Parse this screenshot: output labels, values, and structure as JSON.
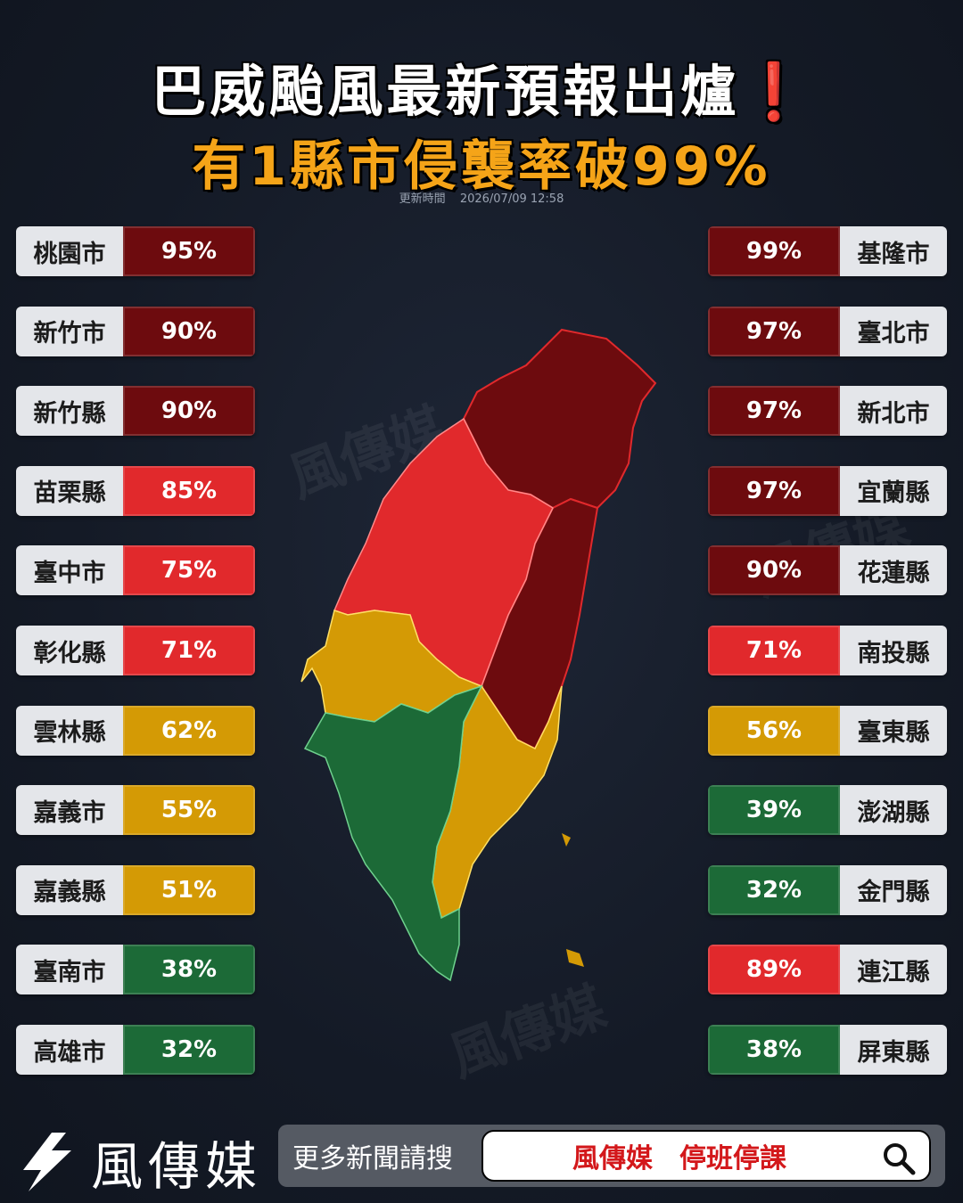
{
  "title_line1": "巴威颱風最新預報出爐❗",
  "title_line2": "有1縣市侵襲率破99%",
  "updated_label": "更新時間",
  "updated_time": "2026/07/09 12:58",
  "watermark_text": "風傳媒",
  "left_items": [
    {
      "name": "桃園市",
      "pct": "95%",
      "level": "dark"
    },
    {
      "name": "新竹市",
      "pct": "90%",
      "level": "dark"
    },
    {
      "name": "新竹縣",
      "pct": "90%",
      "level": "dark"
    },
    {
      "name": "苗栗縣",
      "pct": "85%",
      "level": "red"
    },
    {
      "name": "臺中市",
      "pct": "75%",
      "level": "red"
    },
    {
      "name": "彰化縣",
      "pct": "71%",
      "level": "red"
    },
    {
      "name": "雲林縣",
      "pct": "62%",
      "level": "orange"
    },
    {
      "name": "嘉義市",
      "pct": "55%",
      "level": "orange"
    },
    {
      "name": "嘉義縣",
      "pct": "51%",
      "level": "orange"
    },
    {
      "name": "臺南市",
      "pct": "38%",
      "level": "green"
    },
    {
      "name": "高雄市",
      "pct": "32%",
      "level": "green"
    }
  ],
  "right_items": [
    {
      "name": "基隆市",
      "pct": "99%",
      "level": "dark"
    },
    {
      "name": "臺北市",
      "pct": "97%",
      "level": "dark"
    },
    {
      "name": "新北市",
      "pct": "97%",
      "level": "dark"
    },
    {
      "name": "宜蘭縣",
      "pct": "97%",
      "level": "dark"
    },
    {
      "name": "花蓮縣",
      "pct": "90%",
      "level": "dark"
    },
    {
      "name": "南投縣",
      "pct": "71%",
      "level": "red"
    },
    {
      "name": "臺東縣",
      "pct": "56%",
      "level": "orange"
    },
    {
      "name": "澎湖縣",
      "pct": "39%",
      "level": "green"
    },
    {
      "name": "金門縣",
      "pct": "32%",
      "level": "green"
    },
    {
      "name": "連江縣",
      "pct": "89%",
      "level": "red"
    },
    {
      "name": "屏東縣",
      "pct": "38%",
      "level": "green"
    }
  ],
  "colors": {
    "dark": "#6d0b0e",
    "red": "#e1292c",
    "orange": "#d49a05",
    "green": "#1c6a37"
  },
  "footer": {
    "brand": "風傳媒",
    "search_label": "更多新聞請搜",
    "search_query": "風傳媒　停班停課",
    "search_icon": "magnifier-icon"
  }
}
